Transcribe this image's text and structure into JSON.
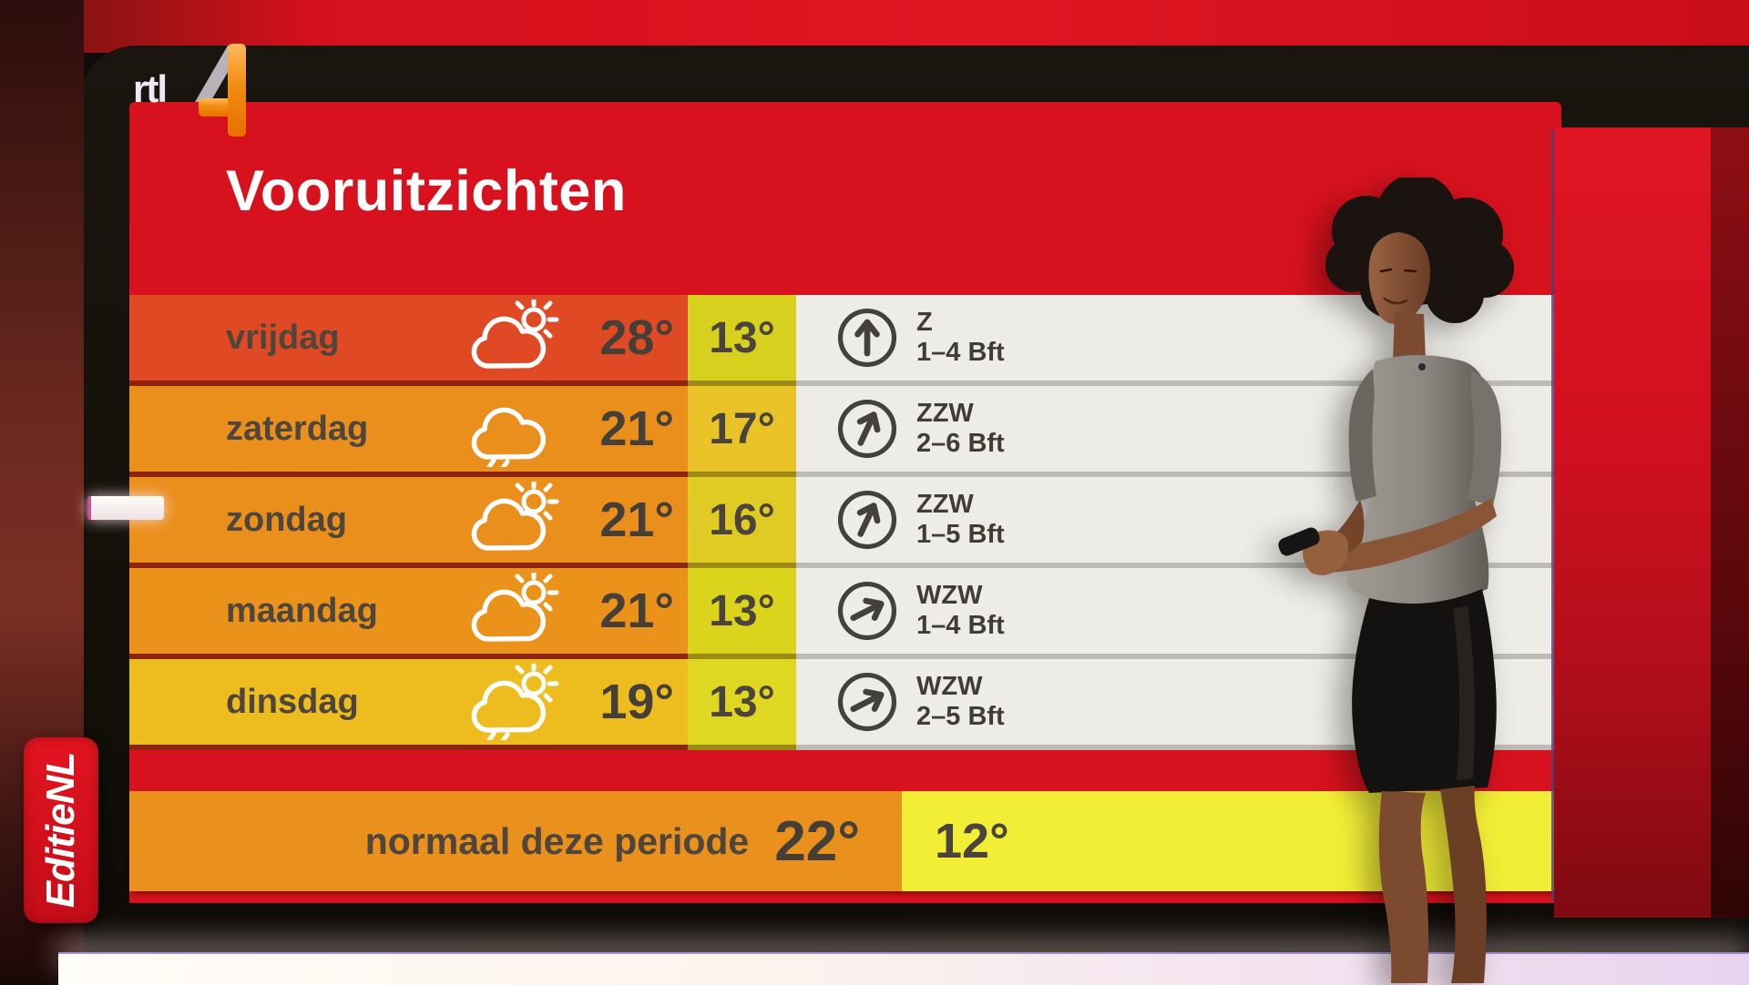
{
  "channel": {
    "logo_text": "rtl",
    "logo_number": "4"
  },
  "program_badge": "EditieNL",
  "screen": {
    "title": "Vooruitzichten",
    "rows": [
      {
        "day": "vrijdag",
        "icon": "sun-cloud",
        "max": "28°",
        "min": "13°",
        "wind": {
          "dir": "Z",
          "force": "1–4 Bft",
          "deg": 0
        },
        "colors": {
          "day_bg": "#df4a25",
          "min_bg": "#d7d01e"
        }
      },
      {
        "day": "zaterdag",
        "icon": "rain-cloud",
        "max": "21°",
        "min": "17°",
        "wind": {
          "dir": "ZZW",
          "force": "2–6 Bft",
          "deg": 25
        },
        "colors": {
          "day_bg": "#ea8f1b",
          "min_bg": "#e9c328"
        }
      },
      {
        "day": "zondag",
        "icon": "sun-cloud",
        "max": "21°",
        "min": "16°",
        "wind": {
          "dir": "ZZW",
          "force": "1–5 Bft",
          "deg": 25
        },
        "colors": {
          "day_bg": "#ea8f1b",
          "min_bg": "#e0ca24"
        }
      },
      {
        "day": "maandag",
        "icon": "sun-cloud",
        "max": "21°",
        "min": "13°",
        "wind": {
          "dir": "WZW",
          "force": "1–4 Bft",
          "deg": 63
        },
        "colors": {
          "day_bg": "#eb921a",
          "min_bg": "#dcd31d"
        }
      },
      {
        "day": "dinsdag",
        "icon": "sun-rain-cloud",
        "max": "19°",
        "min": "13°",
        "wind": {
          "dir": "WZW",
          "force": "2–5 Bft",
          "deg": 63
        },
        "colors": {
          "day_bg": "#edbc1f",
          "min_bg": "#dfd722"
        }
      }
    ],
    "normal_row": {
      "label": "normaal deze periode",
      "max": "22°",
      "min": "12°",
      "colors": {
        "label_bg": "#ea901c",
        "min_bg": "#f2ee36"
      }
    },
    "colors": {
      "background_red": "#d7121e",
      "wind_cell_bg": "#edece6",
      "text_dark": "#4e453c"
    }
  },
  "chart_data": {
    "type": "table",
    "title": "Vooruitzichten",
    "columns": [
      "dag",
      "weerbeeld",
      "max_temp_c",
      "min_temp_c",
      "windrichting",
      "windkracht"
    ],
    "rows": [
      [
        "vrijdag",
        "sun-cloud",
        28,
        13,
        "Z",
        "1–4 Bft"
      ],
      [
        "zaterdag",
        "rain-cloud",
        21,
        17,
        "ZZW",
        "2–6 Bft"
      ],
      [
        "zondag",
        "sun-cloud",
        21,
        16,
        "ZZW",
        "1–5 Bft"
      ],
      [
        "maandag",
        "sun-cloud",
        21,
        13,
        "WZW",
        "1–4 Bft"
      ],
      [
        "dinsdag",
        "sun-rain-cloud",
        19,
        13,
        "WZW",
        "2–5 Bft"
      ]
    ],
    "footer": {
      "label": "normaal deze periode",
      "max_temp_c": 22,
      "min_temp_c": 12
    }
  }
}
